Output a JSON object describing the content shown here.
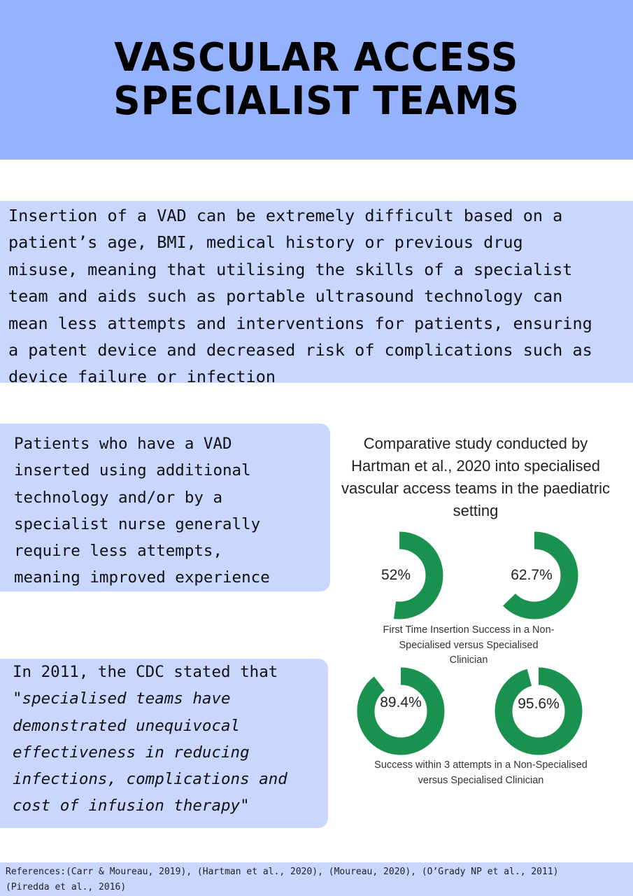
{
  "header": {
    "title_line1": "VASCULAR ACCESS",
    "title_line2": "SPECIALIST TEAMS"
  },
  "intro": {
    "text": "Insertion of a VAD can be extremely difficult based on a\npatient’s age, BMI, medical history or previous drug\nmisuse, meaning that utilising the skills of a specialist\nteam and aids such as portable ultrasound technology can\nmean less attempts and interventions for patients, ensuring\na patent device and decreased risk of complications such as\ndevice failure or infection"
  },
  "box1": {
    "text": "Patients who have a VAD\ninserted using additional\ntechnology and/or by a\nspecialist nurse generally\nrequire less attempts,\nmeaning improved experience"
  },
  "box2": {
    "line1": "In 2011, the CDC stated that",
    "line2_prefix": "\"",
    "line2_italic": "specialised teams have",
    "line3": "demonstrated unequivocal",
    "line4": "effectiveness in reducing",
    "line5": "infections, complications and",
    "line6_italic": "cost of infusion therapy",
    "line6_suffix": "\""
  },
  "study": {
    "text": "Comparative study conducted by\nHartman et al., 2020 into specialised\nvascular access teams in the paediatric\nsetting"
  },
  "colors": {
    "donut": "#1b9150",
    "header_bg": "#94b2fd",
    "box_bg": "#c9d7fe"
  },
  "chart_data": [
    {
      "type": "pie",
      "title": "First Time Insertion Success in a Non-Specialised versus Specialised Clinician",
      "series": [
        {
          "name": "",
          "value": 52,
          "label": "52%"
        },
        {
          "name": "",
          "value": 62.7,
          "label": "62.7%"
        }
      ]
    },
    {
      "type": "pie",
      "title": "Success within 3 attempts in a Non-Specialised versus Specialised Clinician",
      "series": [
        {
          "name": "",
          "value": 89.4,
          "label": "89.4%"
        },
        {
          "name": "",
          "value": 95.6,
          "label": "95.6%"
        }
      ]
    }
  ],
  "captions": {
    "chart1": "First Time Insertion Success in a Non-\nSpecialised versus Specialised\nClinician",
    "chart2": "Success within 3 attempts in a Non-Specialised\nversus Specialised Clinician"
  },
  "references": {
    "text": "References:(Carr & Moureau, 2019), (Hartman et al., 2020), (Moureau, 2020), (O’Grady NP et al., 2011)\n(Piredda et al., 2016)"
  }
}
